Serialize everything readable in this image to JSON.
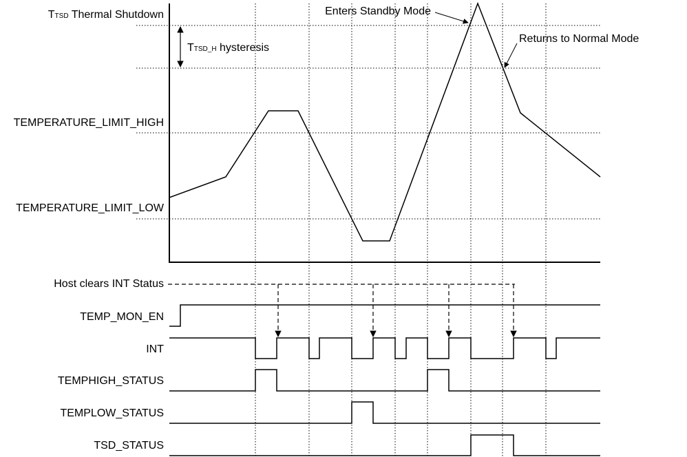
{
  "temperature_levels": {
    "tsd": {
      "symbol": "T",
      "subscript": "TSD",
      "text": " Thermal Shutdown"
    },
    "hysteresis": {
      "symbol": "T",
      "subscript": "TSD_H",
      "text": " hysteresis"
    },
    "limit_high": "TEMPERATURE_LIMIT_HIGH",
    "limit_low": "TEMPERATURE_LIMIT_LOW"
  },
  "annotations": {
    "enters_standby": "Enters Standby Mode",
    "returns_normal": "Returns to Normal Mode",
    "host_clears": "Host clears INT Status"
  },
  "signals": [
    "TEMP_MON_EN",
    "INT",
    "TEMPHIGH_STATUS",
    "TEMPLOW_STATUS",
    "TSD_STATUS"
  ]
}
